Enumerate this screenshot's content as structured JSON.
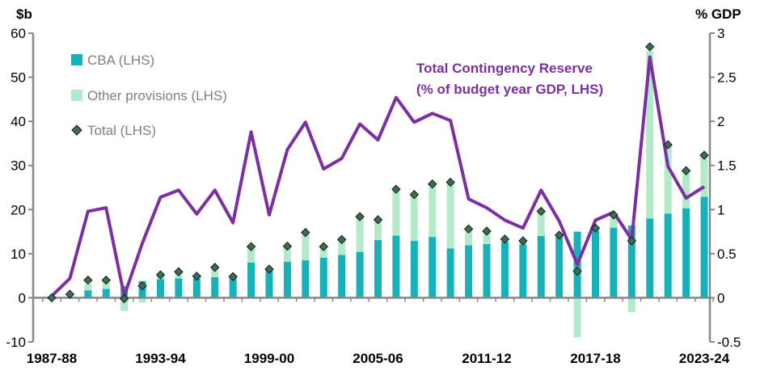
{
  "chart_data": {
    "type": "bar",
    "title": "",
    "left_axis_label": "$b",
    "right_axis_label": "% GDP",
    "ylim_left": [
      -10,
      60
    ],
    "ylim_right": [
      -0.5,
      3
    ],
    "left_ticks": [
      "-10",
      "0",
      "10",
      "20",
      "30",
      "40",
      "50",
      "60"
    ],
    "right_ticks": [
      "-0.5",
      "0",
      "0.5",
      "1",
      "1.5",
      "2",
      "2.5",
      "3"
    ],
    "x_tick_labels": [
      "1987-88",
      "1993-94",
      "1999-00",
      "2005-06",
      "2011-12",
      "2017-18",
      "2023-24"
    ],
    "categories": [
      "1987-88",
      "1988-89",
      "1989-90",
      "1990-91",
      "1991-92",
      "1992-93",
      "1993-94",
      "1994-95",
      "1995-96",
      "1996-97",
      "1997-98",
      "1998-99",
      "1999-00",
      "2000-01",
      "2001-02",
      "2002-03",
      "2003-04",
      "2004-05",
      "2005-06",
      "2006-07",
      "2007-08",
      "2008-09",
      "2009-10",
      "2010-11",
      "2011-12",
      "2012-13",
      "2013-14",
      "2014-15",
      "2015-16",
      "2016-17",
      "2017-18",
      "2018-19",
      "2019-20",
      "2020-21",
      "2021-22",
      "2022-23",
      "2023-24"
    ],
    "legend": [
      {
        "label": "CBA (LHS)",
        "color": "#17B1BA"
      },
      {
        "label": "Other provisions (LHS)",
        "color": "#B3EBCA"
      },
      {
        "label": "Total (LHS)",
        "color": "#3A7050"
      }
    ],
    "annotation": [
      "Total Contingency Reserve",
      "(% of budget year GDP, LHS)"
    ],
    "annotation_color": "#7B2FA2",
    "series": [
      {
        "name": "CBA (LHS)",
        "values": [
          0,
          0,
          1.7,
          2,
          2.7,
          3.8,
          4.2,
          4.4,
          4.4,
          4.7,
          4.5,
          8,
          6.5,
          8.2,
          8.5,
          9.1,
          9.7,
          10.4,
          13.1,
          14.1,
          12.9,
          13.8,
          11.2,
          11.9,
          12.2,
          12.7,
          12.1,
          14,
          14.2,
          15,
          15.2,
          15.9,
          16.4,
          18,
          19.1,
          20.3,
          22.9
        ]
      },
      {
        "name": "Other provisions (LHS)",
        "values": [
          0,
          0,
          1.5,
          1.5,
          -3,
          -1.1,
          1,
          1.5,
          0.5,
          2.2,
          0.3,
          3.6,
          0,
          3.5,
          6.3,
          2.5,
          3.5,
          8,
          4.6,
          10.5,
          10.5,
          12,
          15,
          3.7,
          2.9,
          0.6,
          0.8,
          5.6,
          0,
          -9,
          0.6,
          2.9,
          -3.2,
          38,
          15.6,
          8.5,
          9.4
        ]
      },
      {
        "name": "Total (LHS)",
        "values": [
          0,
          0.8,
          4,
          4,
          -0.2,
          2.7,
          5.2,
          5.9,
          4.9,
          6.9,
          4.8,
          11.6,
          6.5,
          11.7,
          14.8,
          11.6,
          13.2,
          18.4,
          17.7,
          24.6,
          23.4,
          25.8,
          26.2,
          15.6,
          15.1,
          13.3,
          12.9,
          19.6,
          14.2,
          6,
          15.8,
          18.8,
          12.9,
          56.9,
          34.7,
          28.8,
          32.3
        ]
      },
      {
        "name": "Total Contingency Reserve (% of budget year GDP, LHS)",
        "values": [
          0.02,
          0.22,
          0.98,
          1.02,
          0.02,
          0.62,
          1.14,
          1.22,
          0.95,
          1.22,
          0.85,
          1.88,
          0.94,
          1.68,
          1.99,
          1.46,
          1.58,
          1.97,
          1.79,
          2.27,
          1.99,
          2.09,
          2.01,
          1.12,
          1.02,
          0.88,
          0.79,
          1.22,
          0.87,
          0.38,
          0.88,
          0.97,
          0.66,
          2.73,
          1.49,
          1.13,
          1.26
        ]
      }
    ]
  }
}
